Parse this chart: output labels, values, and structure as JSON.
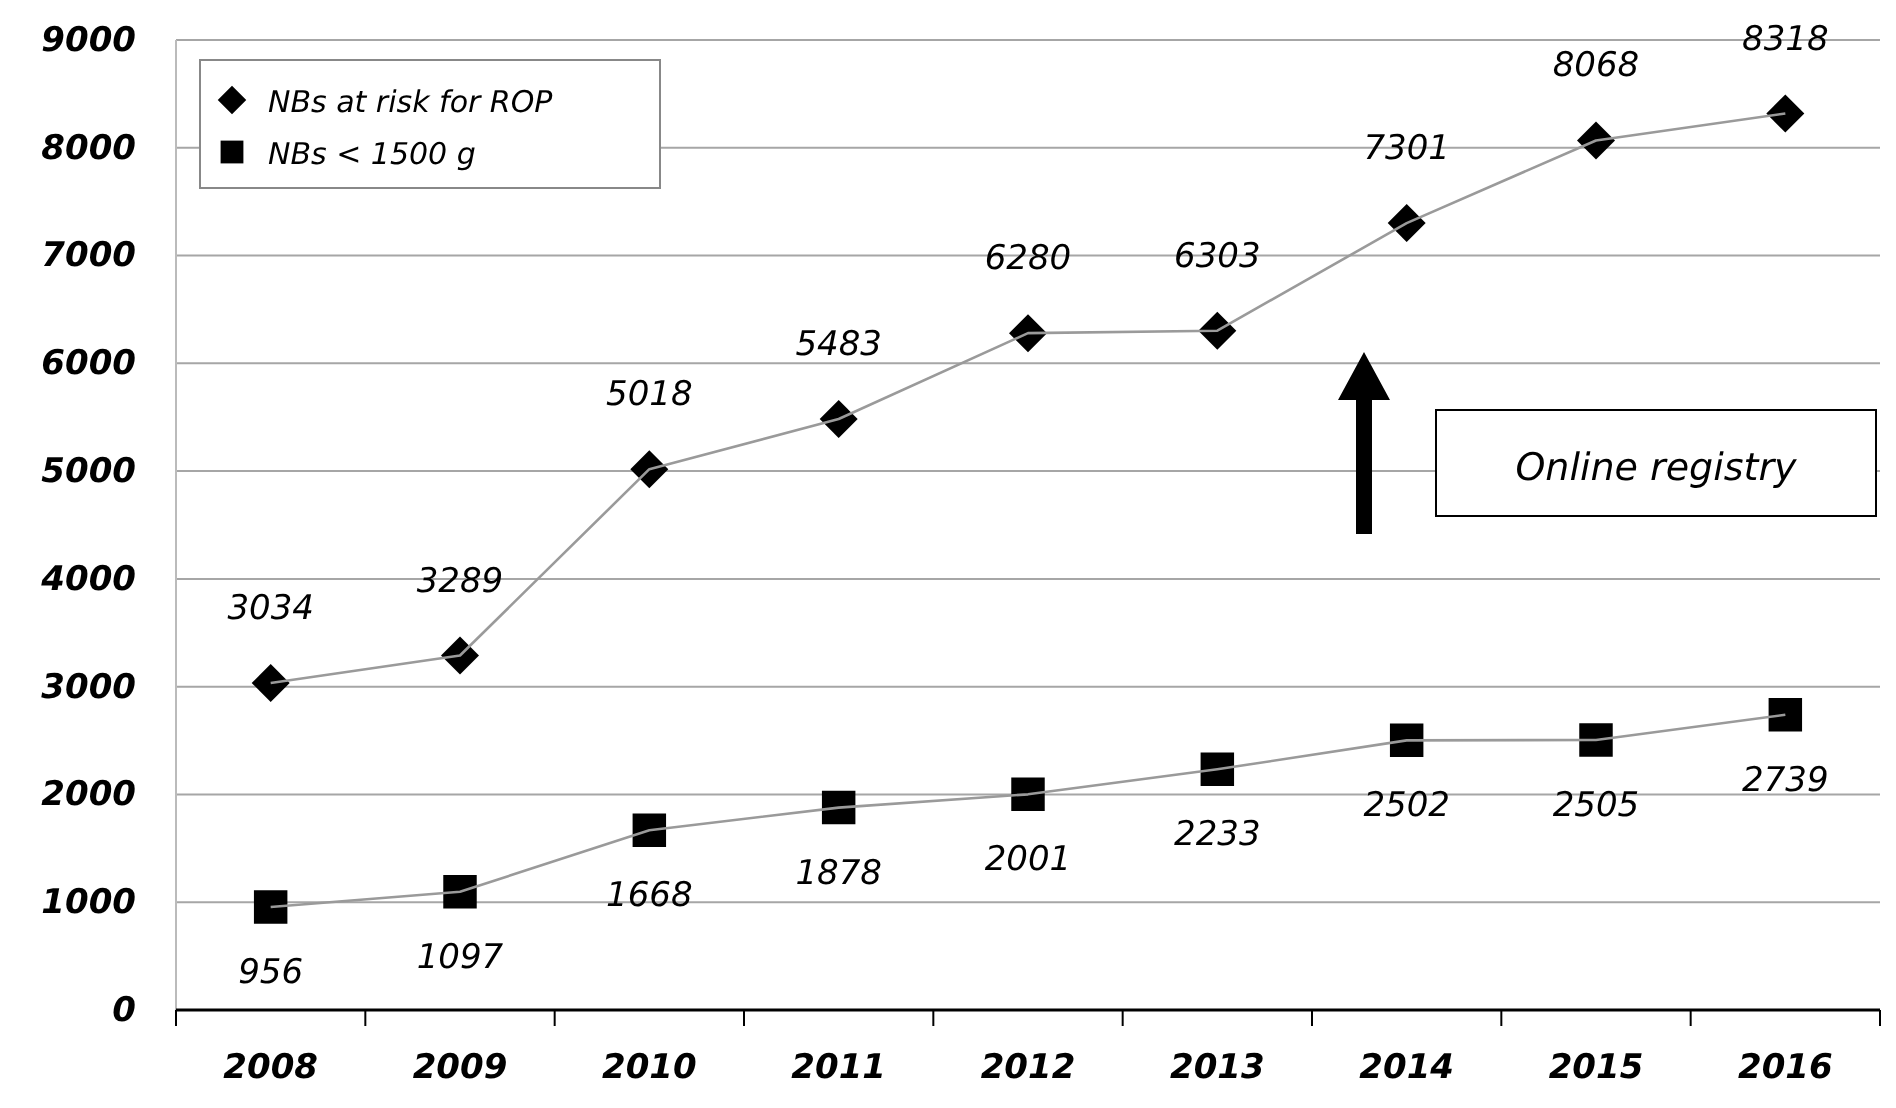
{
  "chart_data": {
    "type": "line",
    "categories": [
      "2008",
      "2009",
      "2010",
      "2011",
      "2012",
      "2013",
      "2014",
      "2015",
      "2016"
    ],
    "series": [
      {
        "name": "NBs at risk for ROP",
        "color": "#000000",
        "marker": "diamond",
        "values": [
          3034,
          3289,
          5018,
          5483,
          6280,
          6303,
          7301,
          8068,
          8318
        ]
      },
      {
        "name": "NBs < 1500 g",
        "color": "#000000",
        "marker": "square",
        "values": [
          956,
          1097,
          1668,
          1878,
          2001,
          2233,
          2502,
          2505,
          2739
        ]
      }
    ],
    "ylim": [
      0,
      9000
    ],
    "yticks": [
      0,
      1000,
      2000,
      3000,
      4000,
      5000,
      6000,
      7000,
      8000,
      9000
    ],
    "grid": "y",
    "legend": "top left",
    "data_labels": true,
    "annotations": [
      "Online registry"
    ]
  }
}
